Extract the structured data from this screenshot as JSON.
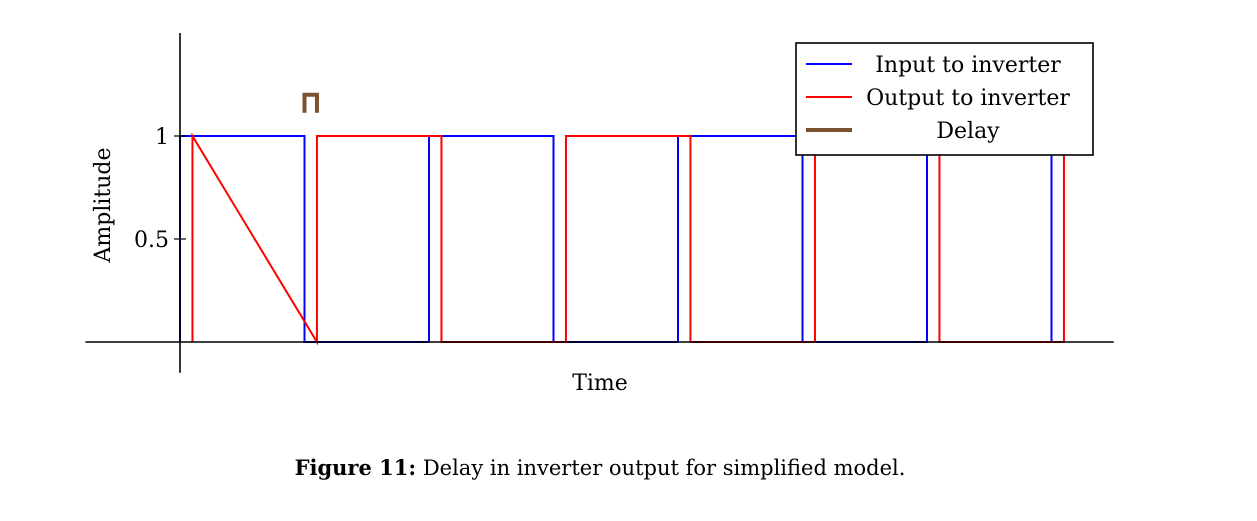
{
  "chart_data": {
    "type": "line",
    "xlabel": "Time",
    "ylabel": "Amplitude",
    "yticks": [
      0.5,
      1
    ],
    "ylim": [
      -0.15,
      1.5
    ],
    "xlim": [
      -0.76,
      7.5
    ],
    "grid": false,
    "legend_position": "top-right",
    "series": [
      {
        "name": "Input to inverter",
        "color": "#0000ff",
        "x": [
          0,
          0,
          1,
          1,
          2,
          2,
          3,
          3,
          4,
          4,
          5,
          5,
          6,
          6,
          7,
          7
        ],
        "y": [
          0,
          1,
          1,
          0,
          0,
          1,
          1,
          0,
          0,
          1,
          1,
          0,
          0,
          1,
          1,
          0
        ]
      },
      {
        "name": "Output to inverter",
        "color": "#ff0000",
        "x": [
          0.1,
          0.1,
          1.1,
          1.1,
          2.1,
          2.1,
          3.1,
          3.1,
          4.1,
          4.1,
          5.1,
          5.1,
          6.1,
          6.1,
          7.1,
          7.1
        ],
        "y": [
          0,
          1,
          0,
          1,
          1,
          0,
          0,
          1,
          1,
          0,
          0,
          1,
          1,
          0,
          0,
          1
        ]
      }
    ],
    "annotations": [
      {
        "name": "Delay",
        "color": "#7a5230",
        "x": [
          1,
          1.1
        ],
        "y": 1.2
      }
    ]
  },
  "caption": {
    "label": "Figure 11:",
    "text": " Delay in inverter output for simplified model."
  }
}
